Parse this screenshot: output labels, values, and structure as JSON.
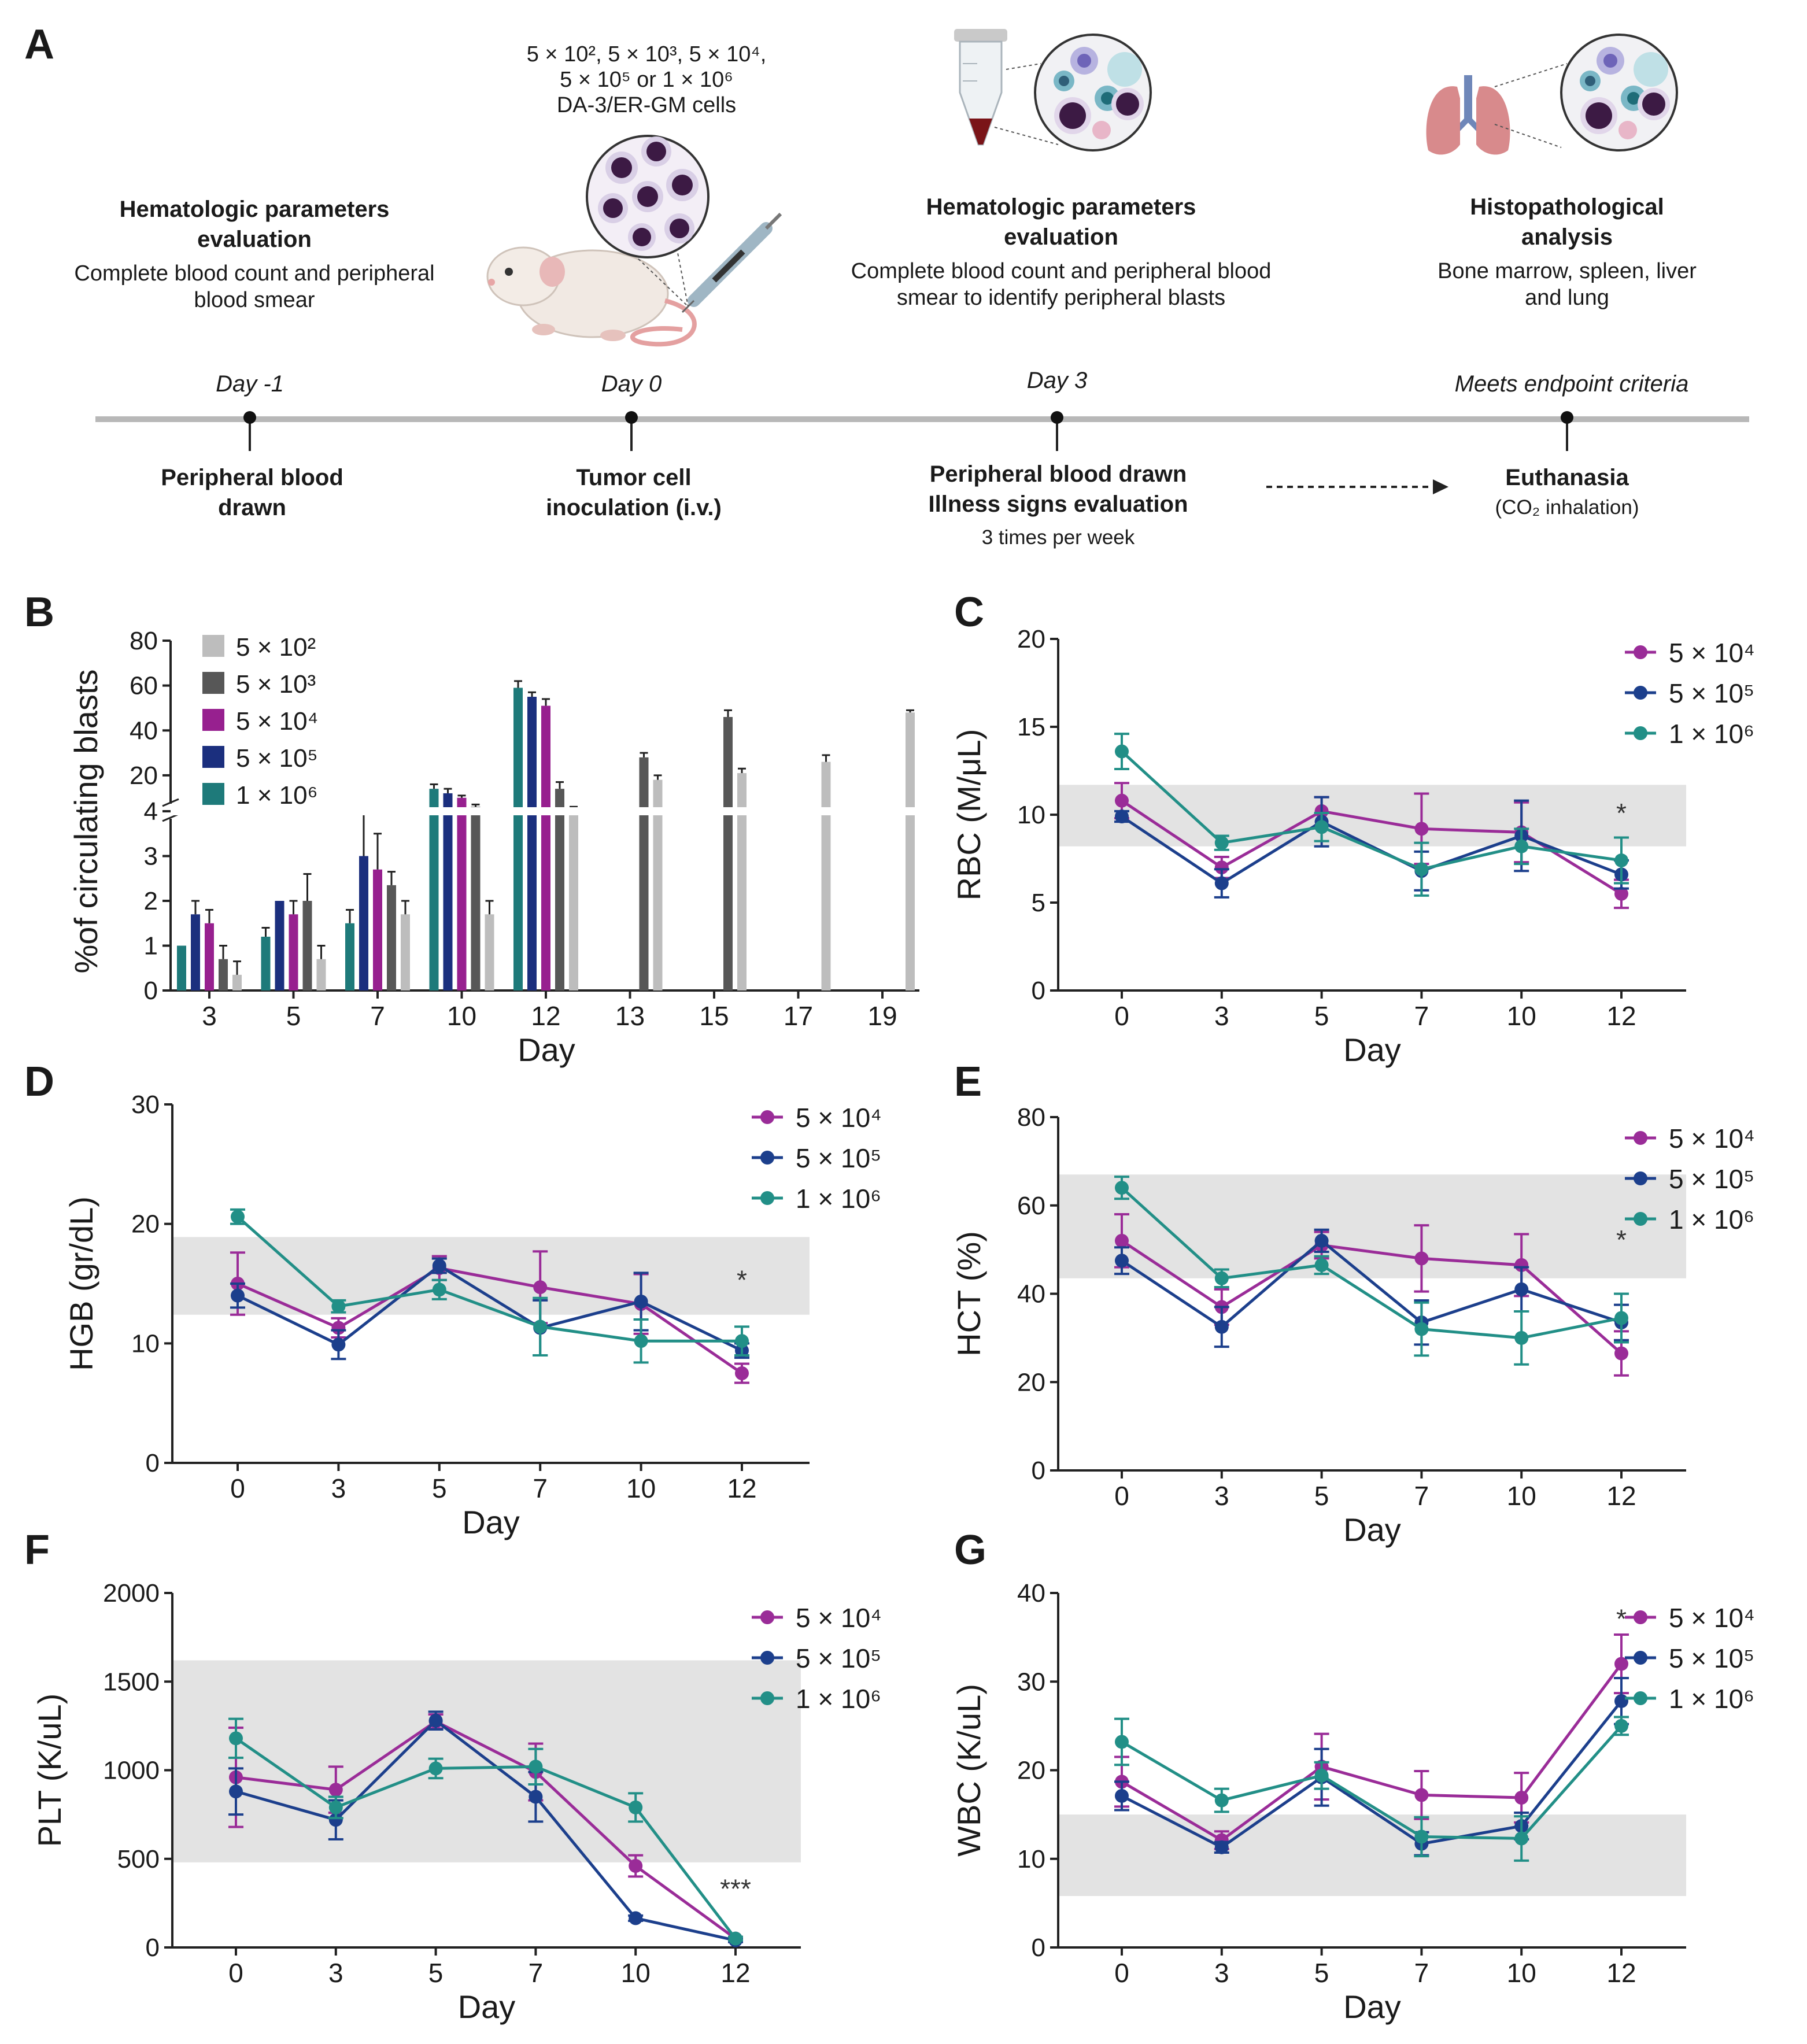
{
  "panel_labels": {
    "a": "A",
    "b": "B",
    "c": "C",
    "d": "D",
    "e": "E",
    "f": "F",
    "g": "G"
  },
  "schematic": {
    "dose_text": {
      "line1": "5 × 10², 5 × 10³, 5 × 10⁴,",
      "line2": "5 × 10⁵ or 1 × 10⁶",
      "line3": "DA-3/ER-GM cells"
    },
    "events_top": [
      {
        "title1": "Hematologic parameters",
        "title2": "evaluation",
        "desc1": "Complete blood count and peripheral",
        "desc2": "blood smear"
      },
      {
        "title1": "Hematologic parameters",
        "title2": "evaluation",
        "desc1": "Complete blood count and peripheral blood",
        "desc2": "smear to identify peripheral blasts"
      },
      {
        "title1": "Histopathological",
        "title2": "analysis",
        "desc1": "Bone marrow, spleen, liver",
        "desc2": "and lung"
      }
    ],
    "timepoints": [
      "Day -1",
      "Day 0",
      "Day 3",
      "Meets endpoint criteria"
    ],
    "events_bottom": [
      {
        "line1": "Peripheral blood",
        "line2": "drawn"
      },
      {
        "line1": "Tumor cell",
        "line2": "inoculation (i.v.)"
      },
      {
        "line1": "Peripheral blood drawn",
        "line2": "Illness signs evaluation",
        "note": "3 times per week"
      },
      {
        "line1": "Euthanasia",
        "line2": "(CO₂ inhalation)"
      }
    ]
  },
  "colors": {
    "c5e2": "#bdbdbd",
    "c5e3": "#575757",
    "c5e4": "#97208f",
    "c5e5": "#1b2f7e",
    "c1e6": "#1e7a7a",
    "line5e4": "#9a2c98",
    "line5e5": "#1c3f8c",
    "line1e6": "#228f87",
    "band": "#e3e3e3"
  },
  "chart_data": [
    {
      "id": "B",
      "type": "bar",
      "ylabel": "%of circulating blasts",
      "xlabel": "Day",
      "categories": [
        "3",
        "5",
        "7",
        "10",
        "12",
        "13",
        "15",
        "17",
        "19"
      ],
      "y_ticks_lower": [
        "0",
        "1",
        "2",
        "3",
        "4"
      ],
      "y_ticks_upper": [
        "20",
        "40",
        "60",
        "80"
      ],
      "y_break": 4,
      "legend": [
        "5 × 10²",
        "5 × 10³",
        "5 × 10⁴",
        "5 × 10⁵",
        "1 × 10⁶"
      ],
      "series": [
        {
          "name": "1 × 10⁶",
          "color": "#1e7a7a",
          "values": [
            1.0,
            1.2,
            1.5,
            14,
            59,
            null,
            null,
            null,
            null
          ],
          "errors": [
            0,
            0.2,
            0.3,
            2,
            3,
            null,
            null,
            null,
            null
          ]
        },
        {
          "name": "5 × 10⁵",
          "color": "#1b2f7e",
          "values": [
            1.7,
            2.0,
            3.0,
            12,
            55,
            null,
            null,
            null,
            null
          ],
          "errors": [
            0.3,
            0,
            1.0,
            2,
            2,
            null,
            null,
            null,
            null
          ]
        },
        {
          "name": "5 × 10⁴",
          "color": "#97208f",
          "values": [
            1.5,
            1.7,
            2.7,
            10,
            51,
            null,
            null,
            null,
            null
          ],
          "errors": [
            0.3,
            0.3,
            0.8,
            1,
            3,
            null,
            null,
            null,
            null
          ]
        },
        {
          "name": "5 × 10³",
          "color": "#575757",
          "values": [
            0.7,
            2.0,
            2.35,
            6,
            14,
            28,
            46,
            null,
            null
          ],
          "errors": [
            0.3,
            0.6,
            0.3,
            1,
            3,
            2,
            3,
            null,
            null
          ]
        },
        {
          "name": "5 × 10²",
          "color": "#bdbdbd",
          "values": [
            0.35,
            0.7,
            1.7,
            1.7,
            5,
            18,
            21,
            26,
            48
          ],
          "errors": [
            0.3,
            0.3,
            0.3,
            0.3,
            1,
            2,
            2,
            3,
            1
          ]
        }
      ]
    },
    {
      "id": "C",
      "type": "line",
      "ylabel": "RBC (M/μL)",
      "xlabel": "Day",
      "x": [
        0,
        3,
        5,
        7,
        10,
        12
      ],
      "x_tick_labels": [
        "0",
        "3",
        "5",
        "7",
        "10",
        "12"
      ],
      "ylim": [
        0,
        20
      ],
      "yticks": [
        0,
        5,
        10,
        15,
        20
      ],
      "normal_range": [
        8.2,
        11.7
      ],
      "star": {
        "text": "*",
        "x": 12,
        "y": 10.3
      },
      "series": [
        {
          "name": "5 × 10⁴",
          "color": "#9a2c98",
          "values": [
            10.8,
            7.0,
            10.2,
            9.2,
            9.0,
            5.5
          ],
          "errors": [
            1.0,
            0.6,
            0.8,
            2.0,
            1.7,
            0.8
          ]
        },
        {
          "name": "5 × 10⁵",
          "color": "#1c3f8c",
          "values": [
            9.9,
            6.1,
            9.6,
            6.8,
            8.8,
            6.6
          ],
          "errors": [
            0.3,
            0.8,
            1.4,
            1.1,
            2.0,
            0.8
          ]
        },
        {
          "name": "1 × 10⁶",
          "color": "#228f87",
          "values": [
            13.6,
            8.4,
            9.3,
            6.9,
            8.2,
            7.4
          ],
          "errors": [
            1.0,
            0.4,
            0.8,
            1.5,
            1.0,
            1.3
          ]
        }
      ]
    },
    {
      "id": "D",
      "type": "line",
      "ylabel": "HGB (gr/dL)",
      "xlabel": "Day",
      "x": [
        0,
        3,
        5,
        7,
        10,
        12
      ],
      "x_tick_labels": [
        "0",
        "3",
        "5",
        "7",
        "10",
        "12"
      ],
      "ylim": [
        0,
        30
      ],
      "yticks": [
        0,
        10,
        20,
        30
      ],
      "normal_range": [
        12.4,
        18.9
      ],
      "star": {
        "text": "*",
        "x": 12,
        "y": 15.6
      },
      "series": [
        {
          "name": "5 × 10⁴",
          "color": "#9a2c98",
          "values": [
            15.0,
            11.3,
            16.3,
            14.7,
            13.3,
            7.5
          ],
          "errors": [
            2.6,
            0.8,
            1.0,
            3.0,
            2.5,
            0.8
          ]
        },
        {
          "name": "5 × 10⁵",
          "color": "#1c3f8c",
          "values": [
            14.0,
            9.9,
            16.5,
            11.3,
            13.5,
            9.4
          ],
          "errors": [
            1.0,
            1.2,
            0.6,
            2.3,
            2.4,
            0.6
          ]
        },
        {
          "name": "1 × 10⁶",
          "color": "#228f87",
          "values": [
            20.6,
            13.1,
            14.5,
            11.4,
            10.2,
            10.2
          ],
          "errors": [
            0.6,
            0.5,
            0.8,
            2.4,
            1.8,
            1.2
          ]
        }
      ]
    },
    {
      "id": "E",
      "type": "line",
      "ylabel": "HCT (%)",
      "xlabel": "Day",
      "x": [
        0,
        3,
        5,
        7,
        10,
        12
      ],
      "x_tick_labels": [
        "0",
        "3",
        "5",
        "7",
        "10",
        "12"
      ],
      "ylim": [
        0,
        80
      ],
      "yticks": [
        0,
        20,
        40,
        60,
        80
      ],
      "normal_range": [
        43.5,
        67
      ],
      "star": {
        "text": "*",
        "x": 12,
        "y": 53
      },
      "series": [
        {
          "name": "5 × 10⁴",
          "color": "#9a2c98",
          "values": [
            52,
            37,
            51,
            48,
            46.5,
            26.5
          ],
          "errors": [
            6,
            4,
            3,
            7.5,
            7,
            5
          ]
        },
        {
          "name": "5 × 10⁵",
          "color": "#1c3f8c",
          "values": [
            47.5,
            32.5,
            52,
            33.5,
            41,
            33.5
          ],
          "errors": [
            3,
            4.5,
            2.5,
            5,
            5,
            4
          ]
        },
        {
          "name": "1 × 10⁶",
          "color": "#228f87",
          "values": [
            64,
            43.5,
            46.5,
            32,
            30,
            34.5
          ],
          "errors": [
            2.5,
            2,
            2,
            6,
            6,
            5.5
          ]
        }
      ]
    },
    {
      "id": "F",
      "type": "line",
      "ylabel": "PLT (K/uL)",
      "xlabel": "Day",
      "x": [
        0,
        3,
        5,
        7,
        10,
        12
      ],
      "x_tick_labels": [
        "0",
        "3",
        "5",
        "7",
        "10",
        "12"
      ],
      "ylim": [
        0,
        2000
      ],
      "yticks": [
        0,
        500,
        1000,
        1500,
        2000
      ],
      "normal_range": [
        480,
        1620
      ],
      "star": {
        "text": "***",
        "x": 12,
        "y": 350
      },
      "series": [
        {
          "name": "5 × 10⁴",
          "color": "#9a2c98",
          "values": [
            960,
            890,
            1275,
            990,
            460,
            50
          ],
          "errors": [
            280,
            130,
            40,
            160,
            60,
            10
          ]
        },
        {
          "name": "5 × 10⁵",
          "color": "#1c3f8c",
          "values": [
            880,
            720,
            1280,
            850,
            165,
            40
          ],
          "errors": [
            130,
            110,
            50,
            140,
            15,
            10
          ]
        },
        {
          "name": "1 × 10⁶",
          "color": "#228f87",
          "values": [
            1180,
            790,
            1010,
            1020,
            790,
            50
          ],
          "errors": [
            110,
            60,
            55,
            100,
            80,
            10
          ]
        }
      ]
    },
    {
      "id": "G",
      "type": "line",
      "ylabel": "WBC (K/uL)",
      "xlabel": "Day",
      "x": [
        0,
        3,
        5,
        7,
        10,
        12
      ],
      "x_tick_labels": [
        "0",
        "3",
        "5",
        "7",
        "10",
        "12"
      ],
      "ylim": [
        0,
        40
      ],
      "yticks": [
        0,
        10,
        20,
        30,
        40
      ],
      "normal_range": [
        5.8,
        15
      ],
      "star": {
        "text": "*",
        "x": 12,
        "y": 37.5
      },
      "series": [
        {
          "name": "5 × 10⁴",
          "color": "#9a2c98",
          "values": [
            18.7,
            12.1,
            20.4,
            17.2,
            16.9,
            32.0
          ],
          "errors": [
            2.8,
            1.0,
            3.7,
            2.7,
            2.8,
            3.3
          ]
        },
        {
          "name": "5 × 10⁵",
          "color": "#1c3f8c",
          "values": [
            17.1,
            11.3,
            19.2,
            11.7,
            13.7,
            27.8
          ],
          "errors": [
            1.6,
            0.6,
            3.2,
            1.3,
            1.5,
            2.6
          ]
        },
        {
          "name": "1 × 10⁶",
          "color": "#228f87",
          "values": [
            23.2,
            16.6,
            19.4,
            12.5,
            12.3,
            25.0
          ],
          "errors": [
            2.6,
            1.3,
            1.5,
            2.2,
            2.5,
            1.0
          ]
        }
      ]
    }
  ]
}
